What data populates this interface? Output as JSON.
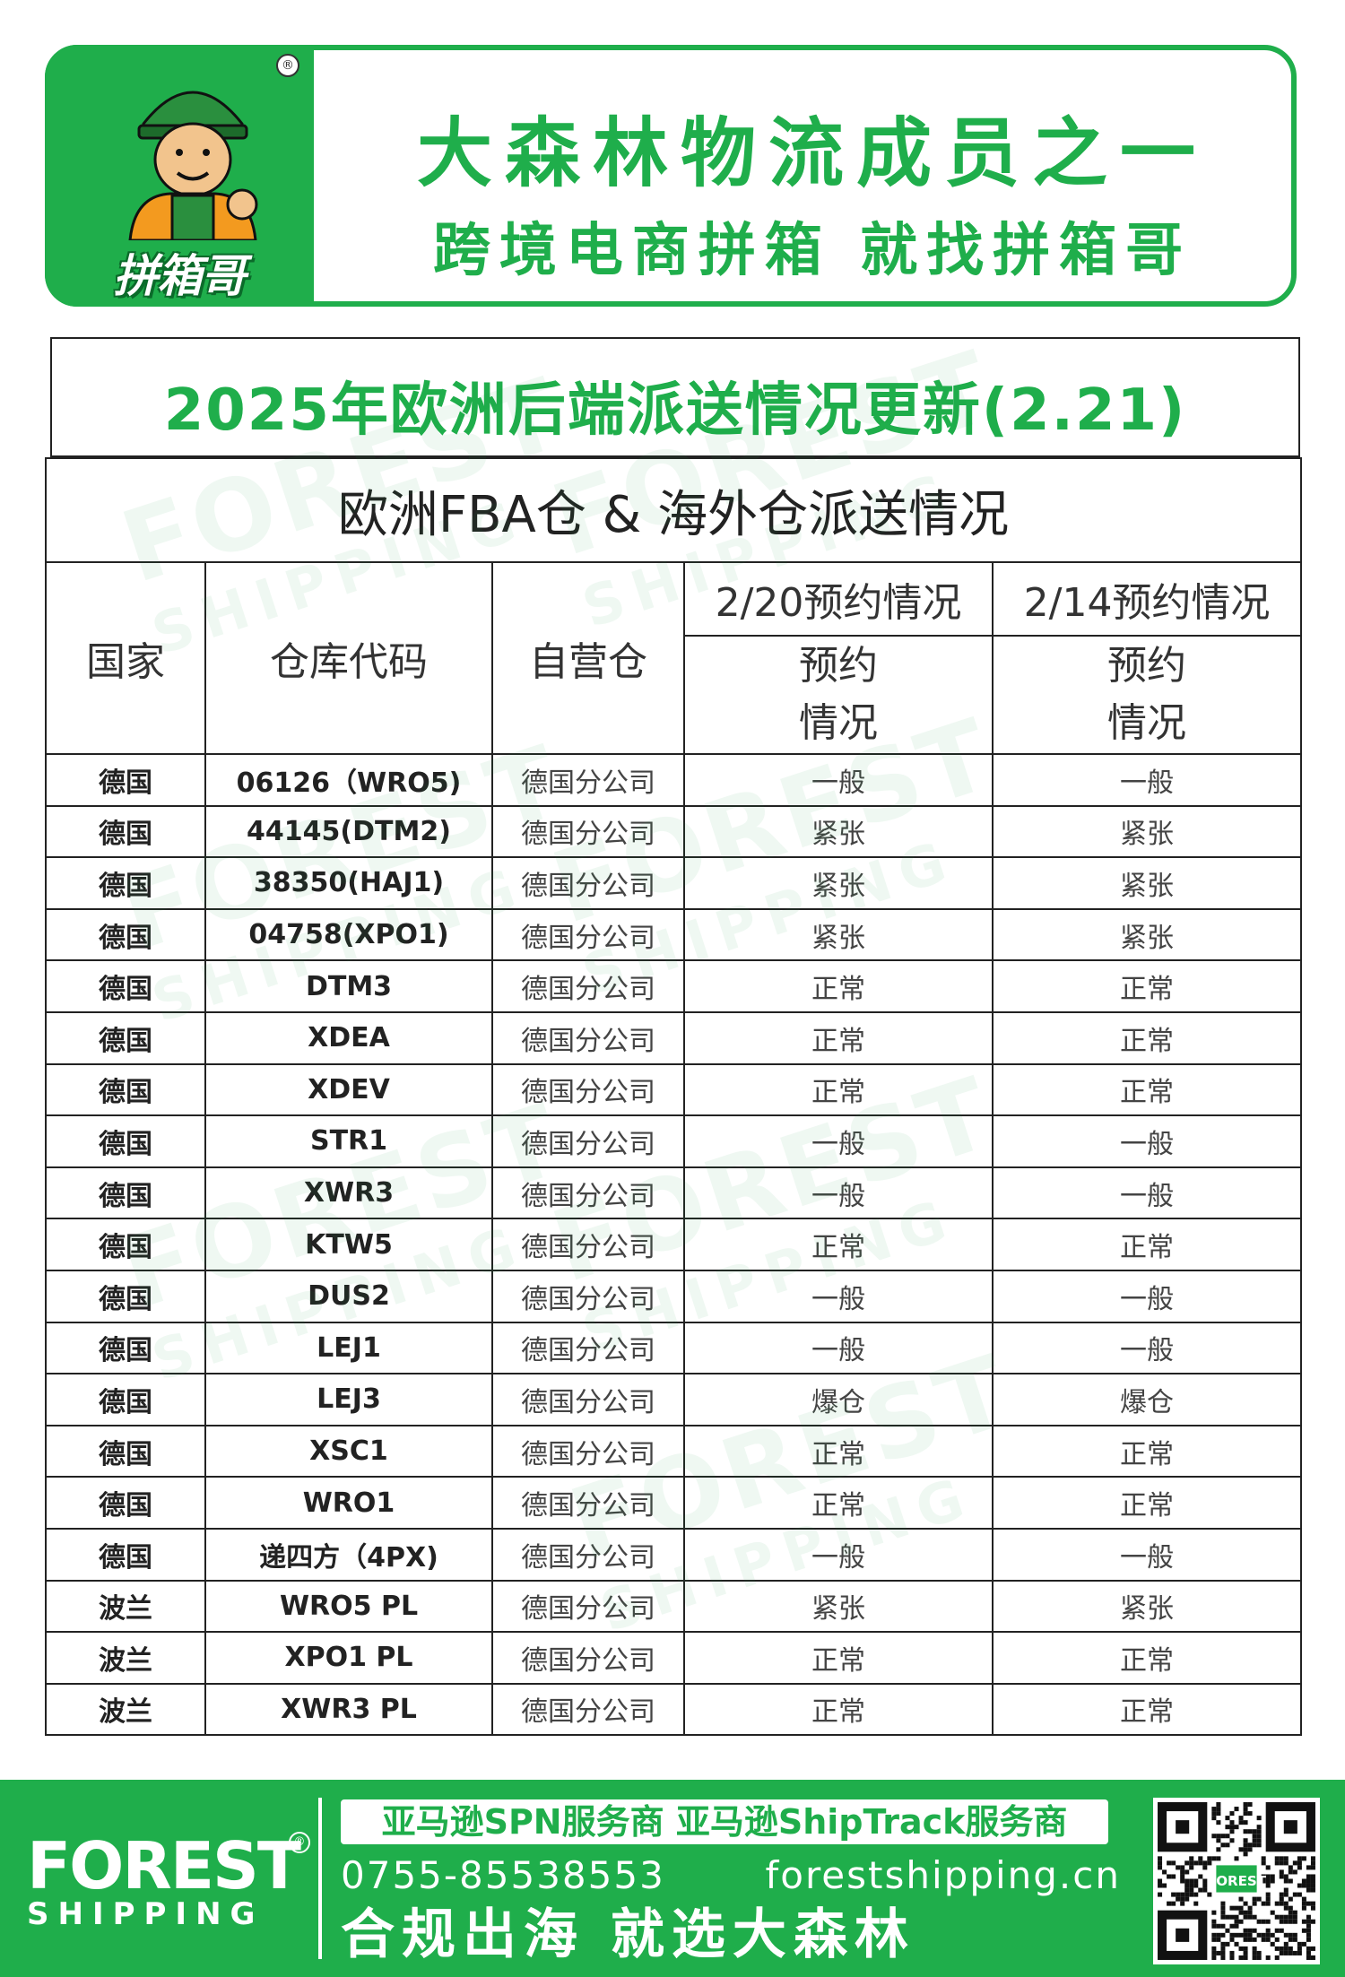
{
  "banner": {
    "logo_text": "拼箱哥",
    "logo_mark": "®",
    "slogan_line1": "大森林物流成员之一",
    "slogan_line2": "跨境电商拼箱 就找拼箱哥"
  },
  "title": "2025年欧洲后端派送情况更新(2.21)",
  "table": {
    "caption": "欧洲FBA仓 & 海外仓派送情况",
    "headers": {
      "country": "国家",
      "code": "仓库代码",
      "own": "自营仓",
      "period1": "2/20预约情况",
      "period2": "2/14预约情况",
      "sub1": "预约\n情况",
      "sub2": "预约\n情况"
    },
    "rows": [
      {
        "country": "德国",
        "code": "06126（WRO5)",
        "own": "德国分公司",
        "s1": "一般",
        "s2": "一般"
      },
      {
        "country": "德国",
        "code": "44145(DTM2)",
        "own": "德国分公司",
        "s1": "紧张",
        "s2": "紧张"
      },
      {
        "country": "德国",
        "code": "38350(HAJ1)",
        "own": "德国分公司",
        "s1": "紧张",
        "s2": "紧张"
      },
      {
        "country": "德国",
        "code": "04758(XPO1)",
        "own": "德国分公司",
        "s1": "紧张",
        "s2": "紧张"
      },
      {
        "country": "德国",
        "code": "DTM3",
        "own": "德国分公司",
        "s1": "正常",
        "s2": "正常"
      },
      {
        "country": "德国",
        "code": "XDEA",
        "own": "德国分公司",
        "s1": "正常",
        "s2": "正常"
      },
      {
        "country": "德国",
        "code": "XDEV",
        "own": "德国分公司",
        "s1": "正常",
        "s2": "正常"
      },
      {
        "country": "德国",
        "code": "STR1",
        "own": "德国分公司",
        "s1": "一般",
        "s2": "一般"
      },
      {
        "country": "德国",
        "code": "XWR3",
        "own": "德国分公司",
        "s1": "一般",
        "s2": "一般"
      },
      {
        "country": "德国",
        "code": "KTW5",
        "own": "德国分公司",
        "s1": "正常",
        "s2": "正常"
      },
      {
        "country": "德国",
        "code": "DUS2",
        "own": "德国分公司",
        "s1": "一般",
        "s2": "一般"
      },
      {
        "country": "德国",
        "code": "LEJ1",
        "own": "德国分公司",
        "s1": "一般",
        "s2": "一般"
      },
      {
        "country": "德国",
        "code": "LEJ3",
        "own": "德国分公司",
        "s1": "爆仓",
        "s2": "爆仓"
      },
      {
        "country": "德国",
        "code": "XSC1",
        "own": "德国分公司",
        "s1": "正常",
        "s2": "正常"
      },
      {
        "country": "德国",
        "code": "WRO1",
        "own": "德国分公司",
        "s1": "正常",
        "s2": "正常"
      },
      {
        "country": "德国",
        "code": "递四方（4PX)",
        "own": "德国分公司",
        "s1": "一般",
        "s2": "一般"
      },
      {
        "country": "波兰",
        "code": "WRO5 PL",
        "own": "德国分公司",
        "s1": "紧张",
        "s2": "紧张"
      },
      {
        "country": "波兰",
        "code": "XPO1 PL",
        "own": "德国分公司",
        "s1": "正常",
        "s2": "正常"
      },
      {
        "country": "波兰",
        "code": "XWR3 PL",
        "own": "德国分公司",
        "s1": "正常",
        "s2": "正常"
      }
    ]
  },
  "watermark": {
    "line1": "FOREST",
    "line2": "SHIPPING"
  },
  "footer": {
    "brand": "FOREST",
    "brand_sub": "SHIPPING",
    "brand_mark": "®",
    "services": "亚马逊SPN服务商  亚马逊ShipTrack服务商",
    "phone": "0755-85538553",
    "website": "forestshipping.cn",
    "slogan": "合规出海  就选大森林",
    "qr_label": "FOREST"
  },
  "colors": {
    "brand_green": "#1fae4b",
    "text": "#222222"
  }
}
